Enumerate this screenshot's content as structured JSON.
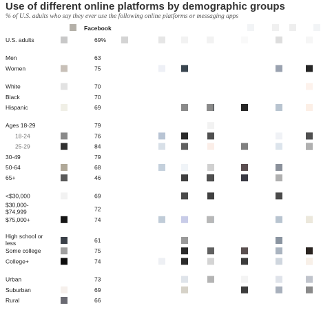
{
  "title": "Use of different online platforms by demographic groups",
  "subtitle": "% of U.S. adults who say they ever use the following online platforms or messaging apps",
  "chart_data": {
    "type": "table",
    "column_header": "Facebook",
    "rows": [
      {
        "label": "U.S. adults",
        "value": 69,
        "suffix": "%",
        "gap_before": 0,
        "sub": false,
        "cells": [
          "#c8c8c8",
          "#d4d4d4",
          "#e6e6e6",
          "#f2f2f2",
          "#f8f8f8",
          "#f9f9f9",
          "#f2f2f2",
          "#dddddd",
          "#e4e4e4",
          "#f6f6f6"
        ]
      },
      {
        "label": "Men",
        "value": 63,
        "gap_before": 1,
        "sub": false,
        "cells": [
          "#ffffff",
          "#ffffff",
          "#ffffff",
          "#ffffff",
          "#ffffff",
          "#ffffff",
          "#ffffff",
          "#ffffff",
          "#ffffff",
          "#ffffff"
        ]
      },
      {
        "label": "Women",
        "value": 75,
        "gap_before": 0,
        "sub": false,
        "cells": [
          "#c8c0b8",
          "#ffffff",
          "#eef0f6",
          "#3a4650",
          "#ffffff",
          "#ffffff",
          "#ffffff",
          "#9aa2b0",
          "#262626",
          "#ffffff"
        ]
      },
      {
        "label": "White",
        "value": 70,
        "gap_before": 1,
        "sub": false,
        "cells": [
          "#e2e2e2",
          "#ffffff",
          "#ffffff",
          "#ffffff",
          "#ffffff",
          "#ffffff",
          "#ffffff",
          "#ffffff",
          "#ffffff",
          "#fdf2ec"
        ]
      },
      {
        "label": "Black",
        "value": 70,
        "gap_before": 0,
        "sub": false,
        "cells": [
          "#ffffff",
          "#ffffff",
          "#ffffff",
          "#ffffff",
          "#ffffff",
          "#ffffff",
          "#ffffff",
          "#ffffff",
          "#ffffff",
          "#ffffff"
        ]
      },
      {
        "label": "Hispanic",
        "value": 69,
        "gap_before": 0,
        "sub": false,
        "cells": [
          "#f0efe6",
          "#ffffff",
          "#ffffff",
          "#8a8a8a",
          "#333a42",
          "#262626",
          "#8a8a8a",
          "#b8c4d0",
          "#4a4e58",
          "#fcefe6"
        ]
      },
      {
        "label": "Ages 18-29",
        "value": 79,
        "gap_before": 1,
        "sub": false,
        "cells": [
          "#ffffff",
          "#ffffff",
          "#ffffff",
          "#ffffff",
          "#f2f2f2",
          "#ffffff",
          "#ffffff",
          "#ffffff",
          "#ffffff",
          "#ffffff"
        ]
      },
      {
        "label": "18-24",
        "value": 76,
        "gap_before": 0,
        "sub": true,
        "cells": [
          "#8a8a8a",
          "#ffffff",
          "#b8c4d4",
          "#2a2a2a",
          "#505050",
          "#ffffff",
          "#ffffff",
          "#f0f2f6",
          "#1e2028",
          "#505050"
        ]
      },
      {
        "label": "25-29",
        "value": 84,
        "gap_before": 0,
        "sub": true,
        "cells": [
          "#303030",
          "#ffffff",
          "#d8e0e8",
          "#606060",
          "#fbeee8",
          "#808080",
          "#ffffff",
          "#dce4ec",
          "#3c3c3c",
          "#b0b0b0"
        ]
      },
      {
        "label": "30-49",
        "value": 79,
        "gap_before": 0,
        "sub": false,
        "cells": [
          "#ffffff",
          "#ffffff",
          "#ffffff",
          "#ffffff",
          "#ffffff",
          "#ffffff",
          "#ffffff",
          "#ffffff",
          "#ffffff",
          "#ffffff"
        ]
      },
      {
        "label": "50-64",
        "value": 68,
        "gap_before": 0,
        "sub": false,
        "cells": [
          "#b0a898",
          "#ffffff",
          "#c4d0dc",
          "#f0f4f8",
          "#d0d0d0",
          "#5a4e50",
          "#ffffff",
          "#8a909a",
          "#ffffff",
          "#ffffff"
        ]
      },
      {
        "label": "65+",
        "value": 46,
        "gap_before": 0,
        "sub": false,
        "cells": [
          "#5a5a5a",
          "#ffffff",
          "#ffffff",
          "#404040",
          "#404040",
          "#3a3a44",
          "#505050",
          "#b0b0b0",
          "#ffffff",
          "#ffffff"
        ]
      },
      {
        "label": "<$30,000",
        "value": 69,
        "gap_before": 1,
        "sub": false,
        "cells": [
          "#f2f2f2",
          "#ffffff",
          "#ffffff",
          "#4a4a4a",
          "#404040",
          "#ffffff",
          "#ffffff",
          "#4a4a4a",
          "#ffffff",
          "#ffffff"
        ]
      },
      {
        "label": "$30,000-\n$74,999",
        "value": 72,
        "gap_before": 0,
        "sub": false,
        "tall": true,
        "cells": [
          "#ffffff",
          "#ffffff",
          "#ffffff",
          "#ffffff",
          "#ffffff",
          "#ffffff",
          "#ffffff",
          "#ffffff",
          "#ffffff",
          "#ffffff"
        ]
      },
      {
        "label": "$75,000+",
        "value": 74,
        "gap_before": 0,
        "sub": false,
        "cells": [
          "#161616",
          "#ffffff",
          "#c0ccd8",
          "#c8cce8",
          "#b4bcc4",
          "#ffffff",
          "#b8b8b8",
          "#b8c4d0",
          "#ccc4b8",
          "#ece8dc"
        ]
      },
      {
        "label": "High school or\nless",
        "value": 61,
        "gap_before": 1,
        "sub": false,
        "tall": true,
        "cells": [
          "#3a4048",
          "#ffffff",
          "#ffffff",
          "#9a9a9a",
          "#ffffff",
          "#ffffff",
          "#ffffff",
          "#8a94a0",
          "#ffffff",
          "#ffffff"
        ]
      },
      {
        "label": "Some college",
        "value": 75,
        "gap_before": 0,
        "sub": false,
        "cells": [
          "#a0a0a0",
          "#ffffff",
          "#ffffff",
          "#2a2a2a",
          "#606060",
          "#5a5050",
          "#ffffff",
          "#aab4c0",
          "#262626",
          "#2a2420"
        ]
      },
      {
        "label": "College+",
        "value": 74,
        "gap_before": 0,
        "sub": false,
        "cells": [
          "#0e0e0e",
          "#ffffff",
          "#eef0f4",
          "#2a2a2a",
          "#d4d4d4",
          "#3c3c3c",
          "#ffffff",
          "#cfd6de",
          "#d0c8b8",
          "#f8f0e8"
        ]
      },
      {
        "label": "Urban",
        "value": 73,
        "gap_before": 1,
        "sub": false,
        "cells": [
          "#ffffff",
          "#ffffff",
          "#ffffff",
          "#dfe4ea",
          "#b4b4b4",
          "#f4f4f4",
          "#ffffff",
          "#dfe3ea",
          "#ffffff",
          "#c0c4cc"
        ]
      },
      {
        "label": "Suburban",
        "value": 69,
        "gap_before": 0,
        "sub": false,
        "cells": [
          "#f6f0ec",
          "#ffffff",
          "#ffffff",
          "#d6d2c8",
          "#ffffff",
          "#3c3c3c",
          "#ffffff",
          "#a8b0bc",
          "#ffffff",
          "#8a8a8a"
        ]
      },
      {
        "label": "Rural",
        "value": 66,
        "gap_before": 0,
        "sub": false,
        "cells": [
          "#6a6a72",
          "#ffffff",
          "#ffffff",
          "#ffffff",
          "#ffffff",
          "#ffffff",
          "#ffffff",
          "#ffffff",
          "#ffffff",
          "#ffffff"
        ]
      }
    ],
    "header_cells": [
      "#b4b0a8",
      "#ffffff",
      "#ffffff",
      "#ffffff",
      "#ffffff",
      "#ffffff",
      "#ffffff",
      "#f2f4f6",
      "#f0f0f0",
      "#eeeeee"
    ]
  }
}
